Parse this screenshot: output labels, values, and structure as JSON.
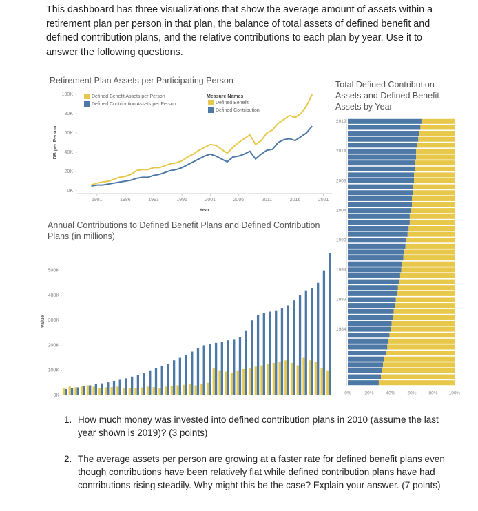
{
  "intro": "This dashboard has three visualizations that show the average amount of assets within a retirement plan per person in that plan, the balance of total assets of defined benefit and defined contribution plans, and the relative contributions to each plan by year. Use it to answer the following questions.",
  "chart_data": [
    {
      "type": "line",
      "title": "Retirement Plan Assets per Participating Person",
      "x_label": "Year",
      "y_label": "DB per Person",
      "x": [
        1980,
        1981,
        1982,
        1983,
        1984,
        1985,
        1986,
        1987,
        1988,
        1989,
        1990,
        1991,
        1992,
        1993,
        1994,
        1995,
        1996,
        1997,
        1998,
        1999,
        2000,
        2001,
        2002,
        2003,
        2004,
        2005,
        2006,
        2007,
        2008,
        2009,
        2010,
        2011,
        2012,
        2013,
        2014,
        2015,
        2016,
        2017,
        2018,
        2019
      ],
      "series": [
        {
          "name": "Defined Benefit Assets per Person",
          "color": "#e8c84a",
          "values": [
            6000,
            8000,
            9000,
            10000,
            12000,
            14000,
            15000,
            17000,
            21000,
            22000,
            22000,
            24000,
            24000,
            26000,
            28000,
            29000,
            31000,
            35000,
            38000,
            42000,
            45000,
            48000,
            47000,
            43000,
            39000,
            45000,
            50000,
            54000,
            58000,
            48000,
            52000,
            60000,
            63000,
            70000,
            74000,
            78000,
            76000,
            80000,
            88000,
            100000
          ]
        },
        {
          "name": "Defined Contribution Assets per Person",
          "color": "#4e79a7",
          "values": [
            5000,
            6000,
            6000,
            7000,
            8000,
            9000,
            10000,
            11000,
            13000,
            14000,
            14000,
            16000,
            17000,
            19000,
            21000,
            22000,
            24000,
            27000,
            30000,
            33000,
            36000,
            38000,
            36000,
            33000,
            30000,
            35000,
            36000,
            38000,
            41000,
            33000,
            38000,
            42000,
            43000,
            50000,
            53000,
            54000,
            52000,
            56000,
            60000,
            67000
          ]
        }
      ],
      "xlim": [
        1977.5,
        2022.5
      ],
      "xticks": [
        1981,
        1986,
        1991,
        1996,
        2001,
        2006,
        2011,
        2016,
        2021
      ],
      "ylim": [
        0,
        100000
      ],
      "yticks": [
        {
          "value": 0,
          "label": "0K"
        },
        {
          "value": 20000,
          "label": "20K"
        },
        {
          "value": 40000,
          "label": "40K"
        },
        {
          "value": 60000,
          "label": "60K"
        },
        {
          "value": 80000,
          "label": "80K"
        },
        {
          "value": 100000,
          "label": "100K"
        }
      ]
    },
    {
      "type": "bar",
      "orientation": "vertical",
      "title": "Annual Contributions to Defined Benefit Plans and Defined Contribution Plans (in millions)",
      "y_label": "Value",
      "legend_title": "Measure Names",
      "series": [
        {
          "name": "Defined Benefit",
          "color": "#e8c84a",
          "values": [
            30000,
            35000,
            32000,
            38000,
            40000,
            35000,
            30000,
            32000,
            33000,
            35000,
            30000,
            28000,
            30000,
            32000,
            35000,
            33000,
            30000,
            35000,
            38000,
            40000,
            42000,
            45000,
            40000,
            45000,
            50000,
            110000,
            100000,
            95000,
            90000,
            100000,
            105000,
            110000,
            115000,
            120000,
            125000,
            130000,
            135000,
            140000,
            130000,
            120000,
            150000,
            140000,
            135000,
            110000,
            100000
          ]
        },
        {
          "name": "Defined Contribution",
          "color": "#4e79a7",
          "values": [
            25000,
            28000,
            32000,
            36000,
            40000,
            45000,
            48000,
            52000,
            58000,
            62000,
            68000,
            75000,
            82000,
            90000,
            100000,
            110000,
            118000,
            126000,
            140000,
            150000,
            160000,
            175000,
            190000,
            200000,
            205000,
            210000,
            215000,
            220000,
            225000,
            232000,
            260000,
            300000,
            320000,
            330000,
            335000,
            340000,
            350000,
            360000,
            380000,
            400000,
            420000,
            430000,
            450000,
            500000,
            569000
          ]
        }
      ],
      "ylim": [
        0,
        590000
      ],
      "yticks": [
        {
          "value": 0,
          "label": "0K"
        },
        {
          "value": 100000,
          "label": "100K"
        },
        {
          "value": 200000,
          "label": "200K"
        },
        {
          "value": 300000,
          "label": "300K"
        },
        {
          "value": 400000,
          "label": "400K"
        },
        {
          "value": 500000,
          "label": "500K"
        }
      ]
    },
    {
      "type": "bar",
      "orientation": "horizontal",
      "stacked": true,
      "title": "Total Defined Contribution Assets and Defined Benefit Assets by Year",
      "y": [
        1975,
        1976,
        1977,
        1978,
        1979,
        1980,
        1981,
        1982,
        1983,
        1984,
        1985,
        1986,
        1987,
        1988,
        1989,
        1990,
        1991,
        1992,
        1993,
        1994,
        1995,
        1996,
        1997,
        1998,
        1999,
        2000,
        2001,
        2002,
        2003,
        2004,
        2005,
        2006,
        2007,
        2008,
        2009,
        2010,
        2011,
        2012,
        2013,
        2014,
        2015,
        2016,
        2017,
        2018,
        2019
      ],
      "series": [
        {
          "color": "#4e79a7",
          "values": [
            29,
            31,
            32,
            33,
            34,
            36,
            37,
            38,
            39,
            40,
            41,
            42,
            43,
            44,
            45,
            46,
            47,
            48,
            49,
            50,
            51,
            52,
            53,
            54,
            55,
            56,
            57,
            58,
            58,
            59,
            60,
            60,
            61,
            61,
            62,
            62,
            63,
            63,
            64,
            64,
            65,
            66,
            67,
            68,
            69
          ]
        },
        {
          "color": "#e8c84a",
          "values": [
            71,
            69,
            68,
            67,
            66,
            64,
            63,
            62,
            61,
            60,
            59,
            58,
            57,
            56,
            55,
            54,
            53,
            52,
            51,
            50,
            49,
            48,
            47,
            46,
            45,
            44,
            43,
            42,
            42,
            41,
            40,
            40,
            39,
            39,
            38,
            38,
            37,
            37,
            36,
            36,
            35,
            34,
            33,
            32,
            31
          ]
        }
      ],
      "ylim": [
        1974.5,
        2019.5
      ],
      "yticks": [
        1984,
        1989,
        1994,
        1999,
        2004,
        2009,
        2014,
        2019
      ],
      "xlim": [
        0,
        100
      ],
      "xticks": [
        {
          "value": 0,
          "label": "0%"
        },
        {
          "value": 20,
          "label": "20%"
        },
        {
          "value": 40,
          "label": "40%"
        },
        {
          "value": 60,
          "label": "60%"
        },
        {
          "value": 80,
          "label": "80%"
        },
        {
          "value": 100,
          "label": "100%"
        }
      ]
    }
  ],
  "questions": [
    {
      "number": "1.",
      "text": "How much money was invested into defined contribution plans in 2010 (assume the last year shown is 2019)? (3 points)"
    },
    {
      "number": "2.",
      "text": "The average assets per person are growing at a faster rate for defined benefit plans even though contributions have been relatively flat while defined contribution plans have had contributions rising steadily. Why might this be the case? Explain your answer. (7 points)"
    }
  ]
}
